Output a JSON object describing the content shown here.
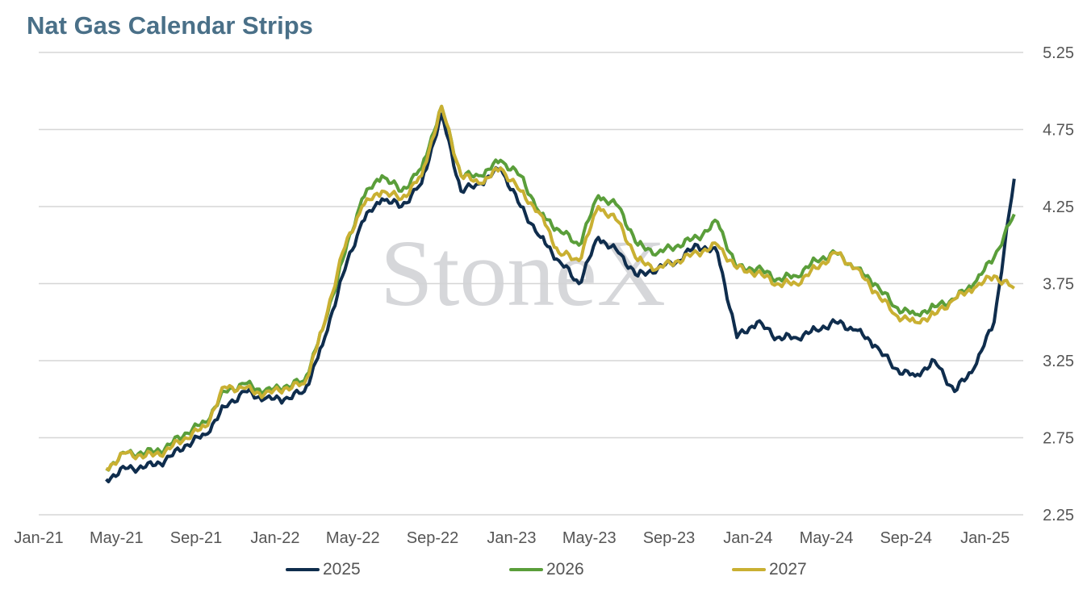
{
  "title": "Nat Gas Calendar Strips",
  "watermark": "StoneX",
  "chart_data": {
    "type": "line",
    "title": "Nat Gas Calendar Strips",
    "xlabel": "",
    "ylabel": "",
    "ylim": [
      2.25,
      5.25
    ],
    "yticks": [
      "5.25",
      "4.75",
      "4.25",
      "3.75",
      "3.25",
      "2.75",
      "2.25"
    ],
    "xlim": [
      "2021-01-01",
      "2025-03-01"
    ],
    "xticks": [
      "Jan-21",
      "May-21",
      "Sep-21",
      "Jan-22",
      "May-22",
      "Sep-22",
      "Jan-23",
      "May-23",
      "Sep-23",
      "Jan-24",
      "May-24",
      "Sep-24",
      "Jan-25"
    ],
    "grid": "horizontal",
    "y_axis_side": "right",
    "legend_position": "bottom",
    "x": [
      "2021-04-15",
      "2021-05-15",
      "2021-06-15",
      "2021-07-15",
      "2021-08-15",
      "2021-09-15",
      "2021-10-15",
      "2021-11-15",
      "2021-12-15",
      "2022-01-15",
      "2022-02-15",
      "2022-03-15",
      "2022-04-15",
      "2022-05-15",
      "2022-06-15",
      "2022-07-15",
      "2022-08-15",
      "2022-09-15",
      "2022-10-15",
      "2022-11-15",
      "2022-12-15",
      "2023-01-15",
      "2023-02-15",
      "2023-03-15",
      "2023-04-15",
      "2023-05-15",
      "2023-06-15",
      "2023-07-15",
      "2023-08-15",
      "2023-09-15",
      "2023-10-15",
      "2023-11-15",
      "2023-12-15",
      "2024-01-15",
      "2024-02-15",
      "2024-03-15",
      "2024-04-15",
      "2024-05-15",
      "2024-06-15",
      "2024-07-15",
      "2024-08-15",
      "2024-09-15",
      "2024-10-15",
      "2024-11-15",
      "2024-12-15",
      "2025-01-15",
      "2025-02-15"
    ],
    "series": [
      {
        "name": "2025",
        "color": "#0f2d4d",
        "values": [
          2.48,
          2.55,
          2.56,
          2.6,
          2.7,
          2.77,
          2.95,
          3.05,
          3.0,
          3.0,
          3.05,
          3.35,
          3.8,
          4.15,
          4.3,
          4.25,
          4.4,
          4.85,
          4.35,
          4.4,
          4.5,
          4.25,
          4.05,
          3.9,
          3.75,
          4.05,
          3.95,
          3.8,
          3.85,
          3.9,
          4.0,
          3.95,
          3.4,
          3.5,
          3.4,
          3.4,
          3.45,
          3.5,
          3.45,
          3.35,
          3.2,
          3.15,
          3.25,
          3.05,
          3.2,
          3.5,
          4.43
        ]
      },
      {
        "name": "2026",
        "color": "#5a9e3a",
        "values": [
          2.55,
          2.65,
          2.65,
          2.68,
          2.78,
          2.85,
          3.05,
          3.1,
          3.05,
          3.08,
          3.12,
          3.45,
          3.9,
          4.3,
          4.45,
          4.35,
          4.5,
          4.9,
          4.45,
          4.45,
          4.55,
          4.45,
          4.2,
          4.1,
          4.0,
          4.32,
          4.25,
          4.0,
          3.95,
          4.0,
          4.05,
          4.15,
          3.85,
          3.85,
          3.78,
          3.8,
          3.9,
          3.95,
          3.85,
          3.75,
          3.6,
          3.55,
          3.6,
          3.65,
          3.75,
          3.92,
          4.2
        ]
      },
      {
        "name": "2027",
        "color": "#c9b032",
        "values": [
          2.55,
          2.65,
          2.63,
          2.66,
          2.75,
          2.82,
          3.08,
          3.07,
          3.03,
          3.07,
          3.1,
          3.45,
          3.95,
          4.25,
          4.35,
          4.3,
          4.45,
          4.9,
          4.45,
          4.4,
          4.5,
          4.35,
          4.2,
          3.95,
          3.9,
          4.25,
          4.15,
          3.9,
          3.85,
          3.9,
          3.95,
          4.0,
          3.85,
          3.82,
          3.75,
          3.75,
          3.85,
          3.95,
          3.85,
          3.7,
          3.55,
          3.5,
          3.55,
          3.65,
          3.72,
          3.8,
          3.72
        ]
      }
    ]
  }
}
